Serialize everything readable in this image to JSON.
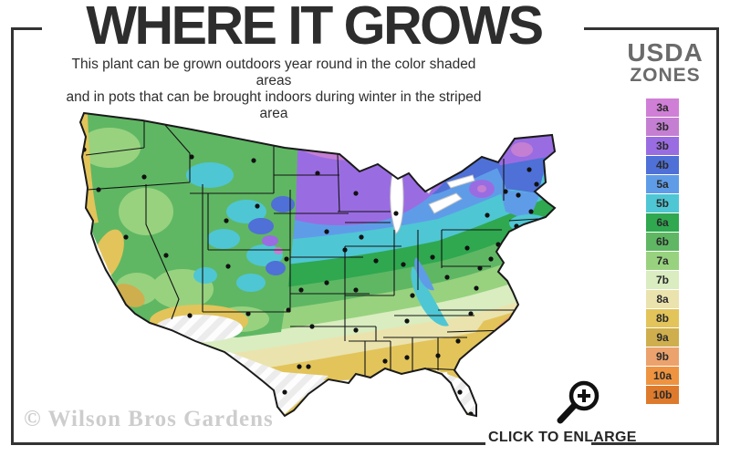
{
  "header": {
    "title": "WHERE IT GROWS",
    "subtitle_line1": "This plant can be grown outdoors year round in the color shaded areas",
    "subtitle_line2": "and in pots that can be brought indoors during winter in the striped area"
  },
  "legend": {
    "title_line1": "USDA",
    "title_line2": "ZONES",
    "zones": [
      {
        "id": "z3a",
        "label": "3a",
        "color": "#d07fd6"
      },
      {
        "id": "z3b1",
        "label": "3b",
        "color": "#c47fd2"
      },
      {
        "id": "z3b2",
        "label": "3b",
        "color": "#9a6ce2"
      },
      {
        "id": "z4b",
        "label": "4b",
        "color": "#4f70d6"
      },
      {
        "id": "z5a",
        "label": "5a",
        "color": "#5f9ce8"
      },
      {
        "id": "z5b",
        "label": "5b",
        "color": "#4fc6d4"
      },
      {
        "id": "z6a",
        "label": "6a",
        "color": "#2fa850"
      },
      {
        "id": "z6b",
        "label": "6b",
        "color": "#5fb763"
      },
      {
        "id": "z7a",
        "label": "7a",
        "color": "#98d27f"
      },
      {
        "id": "z7b",
        "label": "7b",
        "color": "#d9edc0"
      },
      {
        "id": "z8a",
        "label": "8a",
        "color": "#ebe3ae"
      },
      {
        "id": "z8b",
        "label": "8b",
        "color": "#e2c45a"
      },
      {
        "id": "z9a",
        "label": "9a",
        "color": "#cfae4e"
      },
      {
        "id": "z9b",
        "label": "9b",
        "color": "#eca26c"
      },
      {
        "id": "z10a",
        "label": "10a",
        "color": "#ee9340"
      },
      {
        "id": "z10b",
        "label": "10b",
        "color": "#dd7a2c"
      }
    ]
  },
  "map": {
    "name": "usda-hardiness-zone-map",
    "dot_color": "#111111",
    "state_line_color": "#141414",
    "outline_color": "#1a1a1a",
    "lake_color": "#ffffff",
    "city_dots": [
      [
        32,
        52
      ],
      [
        48,
        96
      ],
      [
        98,
        82
      ],
      [
        150,
        60
      ],
      [
        218,
        64
      ],
      [
        288,
        78
      ],
      [
        330,
        100
      ],
      [
        374,
        122
      ],
      [
        188,
        130
      ],
      [
        222,
        114
      ],
      [
        78,
        148
      ],
      [
        122,
        168
      ],
      [
        190,
        180
      ],
      [
        254,
        172
      ],
      [
        298,
        142
      ],
      [
        336,
        148
      ],
      [
        22,
        172
      ],
      [
        50,
        218
      ],
      [
        76,
        232
      ],
      [
        148,
        234
      ],
      [
        212,
        232
      ],
      [
        256,
        228
      ],
      [
        298,
        198
      ],
      [
        318,
        162
      ],
      [
        352,
        174
      ],
      [
        382,
        178
      ],
      [
        414,
        170
      ],
      [
        430,
        192
      ],
      [
        452,
        160
      ],
      [
        474,
        124
      ],
      [
        520,
        74
      ],
      [
        494,
        98
      ],
      [
        508,
        102
      ],
      [
        522,
        120
      ],
      [
        506,
        136
      ],
      [
        486,
        156
      ],
      [
        478,
        172
      ],
      [
        466,
        182
      ],
      [
        392,
        212
      ],
      [
        330,
        206
      ],
      [
        270,
        206
      ],
      [
        282,
        246
      ],
      [
        330,
        250
      ],
      [
        386,
        240
      ],
      [
        456,
        232
      ],
      [
        462,
        204
      ],
      [
        442,
        262
      ],
      [
        420,
        278
      ],
      [
        386,
        280
      ],
      [
        362,
        284
      ],
      [
        346,
        306
      ],
      [
        268,
        290
      ],
      [
        278,
        290
      ],
      [
        252,
        318
      ],
      [
        298,
        312
      ],
      [
        444,
        318
      ],
      [
        456,
        342
      ],
      [
        528,
        90
      ]
    ]
  },
  "footer": {
    "watermark": "© Wilson Bros Gardens",
    "enlarge_label": "CLICK TO ENLARGE"
  },
  "colors": {
    "frame": "#333333",
    "title": "#2d2d2d",
    "legend_title": "#6b6b6b",
    "watermark": "#cdcdcd",
    "stripe_light": "#fdfdfd",
    "stripe_dark": "#ececec"
  }
}
